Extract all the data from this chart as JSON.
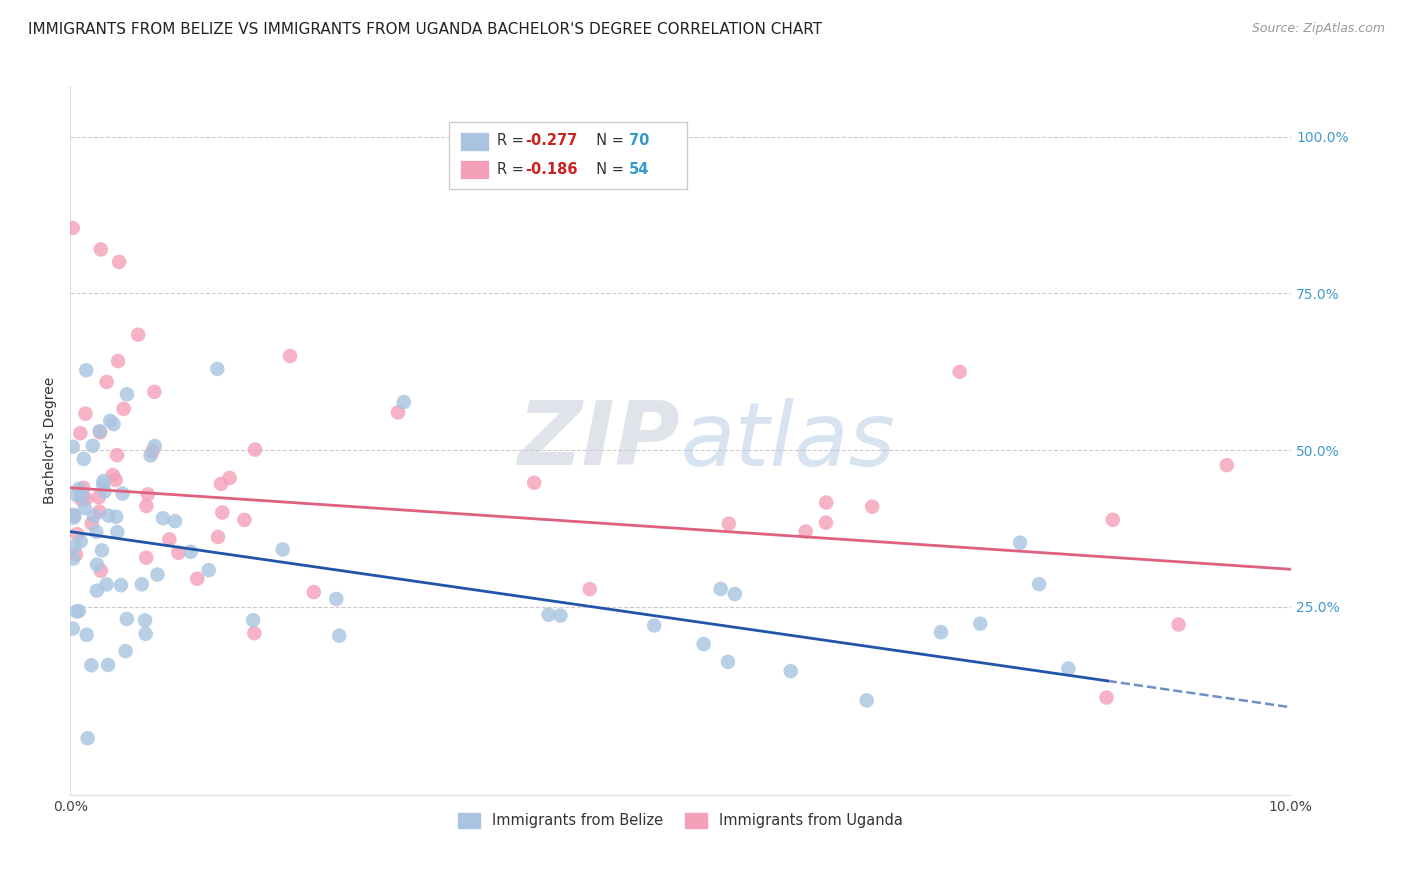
{
  "title": "IMMIGRANTS FROM BELIZE VS IMMIGRANTS FROM UGANDA BACHELOR'S DEGREE CORRELATION CHART",
  "source": "Source: ZipAtlas.com",
  "ylabel": "Bachelor's Degree",
  "y_tick_labels": [
    "100.0%",
    "75.0%",
    "50.0%",
    "25.0%"
  ],
  "y_tick_values": [
    1.0,
    0.75,
    0.5,
    0.25
  ],
  "x_min": 0.0,
  "x_max": 10.0,
  "y_min": -0.05,
  "y_max": 1.08,
  "belize_color": "#a8c4e0",
  "uganda_color": "#f4a0b8",
  "belize_line_color": "#2255aa",
  "uganda_line_color": "#e06080",
  "belize_R": -0.277,
  "belize_N": 70,
  "uganda_R": -0.186,
  "uganda_N": 54,
  "watermark_zip": "ZIP",
  "watermark_atlas": "atlas",
  "background_color": "#ffffff",
  "grid_color": "#cccccc",
  "title_fontsize": 11,
  "axis_label_fontsize": 10,
  "tick_fontsize": 10,
  "right_tick_color": "#4499cc",
  "b_intercept": 0.37,
  "b_slope": -0.028,
  "u_intercept": 0.44,
  "u_slope": -0.013
}
